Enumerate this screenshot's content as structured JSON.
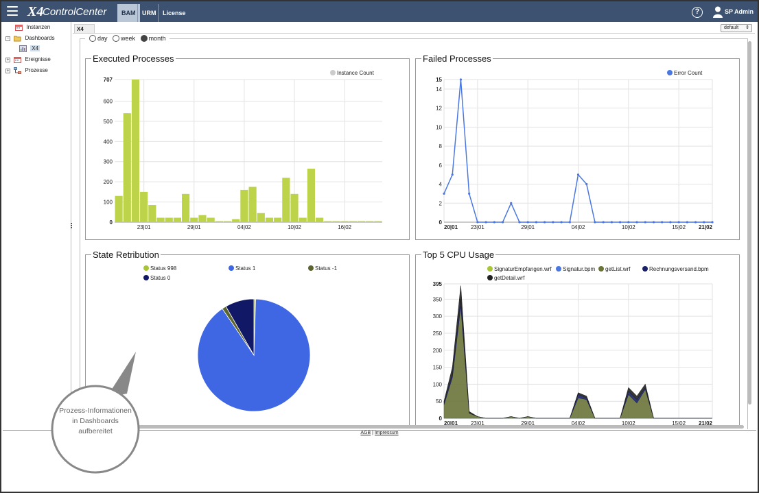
{
  "app": {
    "logo_prefix": "X4",
    "logo_text": "ControlCenter",
    "nav_tabs": [
      "BAM",
      "URM",
      "License"
    ],
    "active_tab": "BAM",
    "help_glyph": "?",
    "user_name": "SP Admin",
    "icons": [
      "hamburger-menu-icon",
      "help-icon",
      "user-icon"
    ]
  },
  "sidebar": {
    "items": [
      {
        "label": "Instanzen",
        "toggle": "",
        "icon": "calendar-icon"
      },
      {
        "label": "Dashboards",
        "toggle": "⊟",
        "icon": "folder-open-icon"
      },
      {
        "label": "X4",
        "toggle": "",
        "icon": "dashboard-icon",
        "selected": true
      },
      {
        "label": "Ereignisse",
        "toggle": "⊞",
        "icon": "calendar-icon"
      },
      {
        "label": "Prozesse",
        "toggle": "⊞",
        "icon": "process-icon"
      }
    ]
  },
  "main": {
    "tab_label": "X4",
    "view_select": "default",
    "ranges": [
      {
        "label": "day",
        "selected": false
      },
      {
        "label": "week",
        "selected": false
      },
      {
        "label": "month",
        "selected": true
      }
    ]
  },
  "panels": {
    "executed": {
      "title": "Executed Processes"
    },
    "failed": {
      "title": "Failed Processes"
    },
    "state": {
      "title": "State Retribution"
    },
    "cpu": {
      "title": "Top 5 CPU Usage"
    }
  },
  "chart_data": [
    {
      "id": "executed",
      "type": "bar",
      "title": "Executed Processes",
      "legend": [
        "Instance Count"
      ],
      "colors": {
        "Instance Count": "#bcd34a"
      },
      "ylim": [
        0,
        707
      ],
      "y_ticks": [
        0,
        100,
        200,
        300,
        400,
        500,
        600,
        707
      ],
      "x_tick_labels": [
        {
          "index": 3,
          "label": "23|01"
        },
        {
          "index": 9,
          "label": "29|01"
        },
        {
          "index": 15,
          "label": "04|02"
        },
        {
          "index": 21,
          "label": "10|02"
        },
        {
          "index": 27,
          "label": "16|02"
        }
      ],
      "categories_count": 32,
      "series": [
        {
          "name": "Instance Count",
          "values": [
            130,
            540,
            707,
            150,
            85,
            22,
            22,
            22,
            140,
            22,
            35,
            22,
            5,
            5,
            15,
            160,
            175,
            45,
            22,
            22,
            220,
            140,
            22,
            265,
            22,
            5,
            5,
            5,
            5,
            5,
            5,
            5
          ]
        }
      ],
      "grid": true,
      "legend_position": "top-right"
    },
    {
      "id": "failed",
      "type": "line",
      "title": "Failed Processes",
      "legend": [
        "Error Count"
      ],
      "colors": {
        "Error Count": "#4a77e0"
      },
      "ylim": [
        0,
        15
      ],
      "y_ticks": [
        0,
        2,
        4,
        6,
        8,
        10,
        12,
        14,
        15
      ],
      "x_tick_labels": [
        {
          "index": 0,
          "label": "20|01",
          "bold": true
        },
        {
          "index": 4,
          "label": "23|01"
        },
        {
          "index": 10,
          "label": "29|01"
        },
        {
          "index": 16,
          "label": "04|02"
        },
        {
          "index": 22,
          "label": "10|02"
        },
        {
          "index": 28,
          "label": "15|02"
        },
        {
          "index": 32,
          "label": "21|02",
          "bold": true
        }
      ],
      "series": [
        {
          "name": "Error Count",
          "values": [
            3,
            5,
            15,
            3,
            0,
            0,
            0,
            0,
            2,
            0,
            0,
            0,
            0,
            0,
            0,
            0,
            5,
            4,
            0,
            0,
            0,
            0,
            0,
            0,
            0,
            0,
            0,
            0,
            0,
            0,
            0,
            0,
            0
          ]
        }
      ],
      "grid": true,
      "legend_position": "top-right"
    },
    {
      "id": "state",
      "type": "pie",
      "title": "State Retribution",
      "legend": [
        "Status 998",
        "Status 1",
        "Status -1",
        "Status 0"
      ],
      "colors": {
        "Status 998": "#a7c536",
        "Status 1": "#3f66e3",
        "Status -1": "#5c6530",
        "Status 0": "#111866"
      },
      "slices": [
        {
          "name": "Status 998",
          "value": 0.5
        },
        {
          "name": "Status 1",
          "value": 90.0
        },
        {
          "name": "Status -1",
          "value": 1.2
        },
        {
          "name": "Status 0",
          "value": 8.3
        }
      ],
      "legend_position": "top"
    },
    {
      "id": "cpu",
      "type": "area",
      "title": "Top 5 CPU Usage",
      "legend": [
        "SignaturEmpfangen.wrf",
        "Signatur.bpm",
        "getList.wrf",
        "Rechnungsversand.bpm",
        "getDetail.wrf"
      ],
      "colors": {
        "SignaturEmpfangen.wrf": "#a7c536",
        "Signatur.bpm": "#4a77e0",
        "getList.wrf": "#6a7338",
        "Rechnungsversand.bpm": "#1a2166",
        "getDetail.wrf": "#222222"
      },
      "ylim": [
        0,
        395
      ],
      "y_ticks": [
        0,
        50,
        100,
        150,
        200,
        250,
        300,
        350,
        395
      ],
      "x_tick_labels": [
        {
          "index": 0,
          "label": "20|01",
          "bold": true
        },
        {
          "index": 4,
          "label": "23|01"
        },
        {
          "index": 10,
          "label": "29|01"
        },
        {
          "index": 16,
          "label": "04|02"
        },
        {
          "index": 22,
          "label": "10|02"
        },
        {
          "index": 28,
          "label": "15|02"
        },
        {
          "index": 32,
          "label": "21|02",
          "bold": true
        }
      ],
      "series": [
        {
          "name": "SignaturEmpfangen.wrf",
          "values": [
            0,
            0,
            0,
            0,
            0,
            0,
            0,
            0,
            0,
            0,
            0,
            0,
            0,
            0,
            0,
            0,
            0,
            0,
            0,
            0,
            0,
            0,
            0,
            0,
            0,
            0,
            0,
            0,
            0,
            0,
            0,
            0,
            0
          ]
        },
        {
          "name": "Signatur.bpm",
          "values": [
            0,
            0,
            0,
            0,
            0,
            0,
            0,
            0,
            0,
            0,
            0,
            0,
            0,
            0,
            0,
            0,
            0,
            0,
            0,
            0,
            0,
            0,
            0,
            0,
            0,
            0,
            0,
            0,
            0,
            0,
            0,
            0,
            0
          ]
        },
        {
          "name": "getList.wrf",
          "values": [
            40,
            120,
            330,
            15,
            5,
            0,
            0,
            0,
            5,
            0,
            5,
            0,
            0,
            0,
            0,
            0,
            60,
            55,
            0,
            0,
            0,
            0,
            70,
            45,
            85,
            0,
            0,
            0,
            0,
            0,
            0,
            0,
            0
          ]
        },
        {
          "name": "Rechnungsversand.bpm",
          "values": [
            5,
            10,
            20,
            0,
            0,
            0,
            0,
            0,
            0,
            0,
            0,
            0,
            0,
            0,
            0,
            0,
            10,
            5,
            0,
            0,
            0,
            0,
            10,
            10,
            5,
            0,
            0,
            0,
            0,
            0,
            0,
            0,
            0
          ]
        },
        {
          "name": "getDetail.wrf",
          "values": [
            5,
            20,
            40,
            5,
            0,
            0,
            0,
            0,
            0,
            0,
            0,
            0,
            0,
            0,
            0,
            0,
            5,
            5,
            0,
            0,
            0,
            0,
            10,
            10,
            10,
            0,
            0,
            0,
            0,
            0,
            0,
            0,
            0
          ]
        }
      ],
      "grid": true,
      "legend_position": "top"
    }
  ],
  "footer": {
    "links": [
      "AGB",
      "Impressum"
    ],
    "separator": "|"
  },
  "callout": {
    "text": "Prozess-Informationen in Dashboards aufbereitet"
  }
}
